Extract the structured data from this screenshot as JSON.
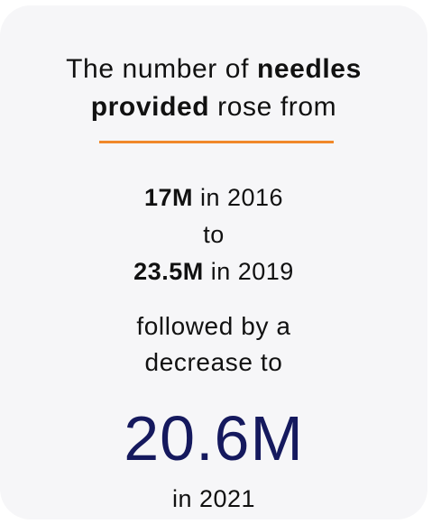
{
  "headline": {
    "part1": "The number of ",
    "bold1": "needles",
    "bold2": "provided",
    "part2": " rose from"
  },
  "accent_color": "#f0882a",
  "stats": {
    "start_value": "17M",
    "start_year_text": " in 2016",
    "connector": "to",
    "peak_value": "23.5M",
    "peak_year_text": " in 2019"
  },
  "followed": {
    "line1": "followed by a",
    "line2": "decrease to"
  },
  "final": {
    "value": "20.6M",
    "value_color": "#15195e",
    "year_text": "in 2021"
  }
}
